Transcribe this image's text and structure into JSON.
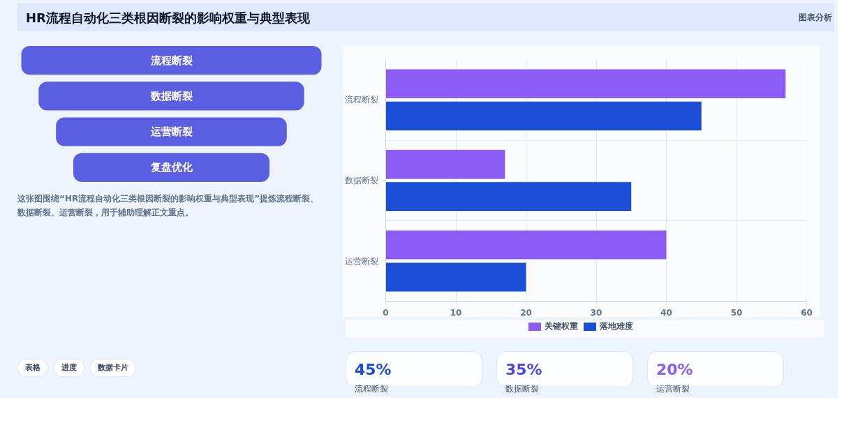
{
  "chart_data": [
    {
      "type": "other",
      "title": "HR流程自动化三类根因断裂的影响权重与典型表现",
      "categories": [
        "流程断裂",
        "数据断裂",
        "运营断裂",
        "复盘优化"
      ],
      "color": "#5a5fe2",
      "annotations": [
        "图表分析",
        "这张图围绕“HR流程自动化三类根因断裂的影响权重与典型表现”提炼流程断裂、数据断裂、运营断裂，用于辅助理解正文重点。",
        "表格",
        "进度",
        "数据卡片"
      ]
    },
    {
      "type": "bar",
      "orientation": "horizontal",
      "categories": [
        "流程断裂",
        "数据断裂",
        "运营断裂"
      ],
      "series": [
        {
          "name": "关键权重",
          "color": "#8b5cf6",
          "values": [
            57,
            17,
            40
          ]
        },
        {
          "name": "落地难度",
          "color": "#1d4ed8",
          "values": [
            45,
            35,
            20
          ]
        }
      ],
      "xlim": [
        0,
        60
      ],
      "xticks": [
        0,
        10,
        20,
        30,
        40,
        50,
        60
      ],
      "grid": true,
      "legend": "bottom"
    },
    {
      "type": "other",
      "annotations": [
        "45%",
        "流程断裂",
        "35%",
        "数据断裂",
        "20%",
        "运营断裂"
      ],
      "colors": [
        "#1d4ed8",
        "#4f46e5",
        "#8b5cf6"
      ]
    }
  ]
}
